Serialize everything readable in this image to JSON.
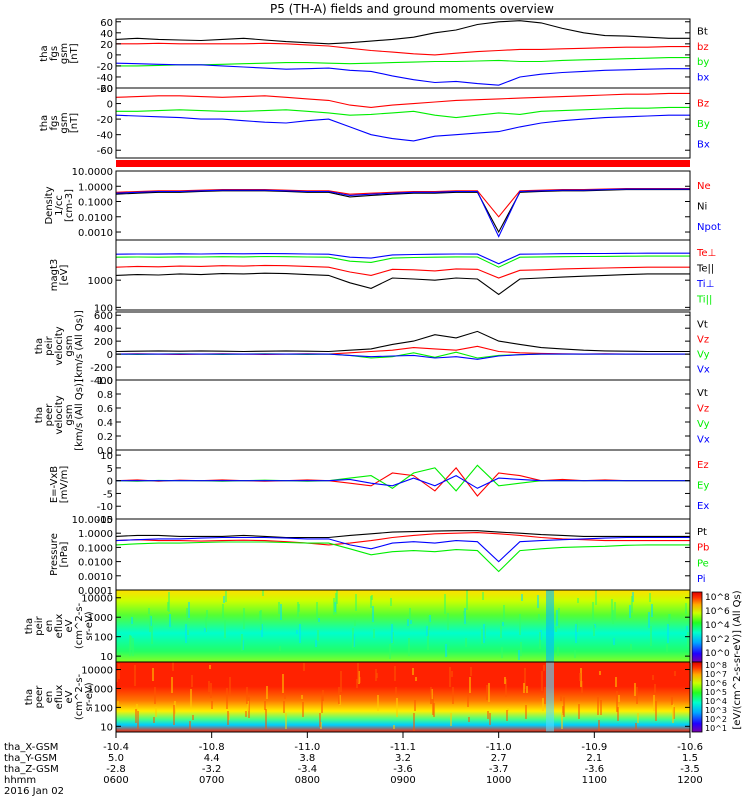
{
  "title": "P5 (TH-A) fields and ground moments overview",
  "chart_data": [
    {
      "type": "line",
      "panel": "fgs",
      "ylabel": "tha fgs gsm [nT]",
      "yticks": [
        60,
        40,
        20,
        0,
        -20,
        -40,
        -60
      ],
      "ylim": [
        -60,
        65
      ],
      "series": [
        {
          "name": "Bt",
          "color": "#000000",
          "values": [
            28,
            30,
            28,
            27,
            26,
            28,
            30,
            27,
            24,
            22,
            20,
            22,
            25,
            28,
            32,
            40,
            45,
            55,
            60,
            62,
            58,
            48,
            40,
            35,
            34,
            32,
            30,
            30
          ]
        },
        {
          "name": "bz",
          "color": "#ff0000",
          "values": [
            20,
            20,
            21,
            20,
            20,
            20,
            20,
            21,
            20,
            18,
            16,
            12,
            8,
            5,
            2,
            0,
            3,
            6,
            8,
            10,
            10,
            11,
            12,
            13,
            14,
            14,
            15,
            15
          ]
        },
        {
          "name": "by",
          "color": "#00ee00",
          "values": [
            -20,
            -20,
            -19,
            -18,
            -18,
            -17,
            -16,
            -15,
            -14,
            -14,
            -15,
            -16,
            -15,
            -14,
            -13,
            -12,
            -12,
            -11,
            -10,
            -12,
            -12,
            -10,
            -9,
            -8,
            -7,
            -6,
            -5,
            -5
          ]
        },
        {
          "name": "bx",
          "color": "#0000ff",
          "values": [
            -15,
            -16,
            -17,
            -18,
            -18,
            -20,
            -22,
            -24,
            -26,
            -25,
            -24,
            -28,
            -30,
            -38,
            -45,
            -50,
            -48,
            -52,
            -55,
            -40,
            -35,
            -32,
            -30,
            -28,
            -27,
            -26,
            -25,
            -25
          ]
        }
      ]
    },
    {
      "type": "line",
      "panel": "fgs-caps",
      "ylabel": "tha fgs gsm [nT]",
      "yticks": [
        20,
        0,
        -20,
        -40,
        -60
      ],
      "ylim": [
        -70,
        20
      ],
      "series": [
        {
          "name": "Bz",
          "color": "#ff0000",
          "values": [
            8,
            9,
            10,
            10,
            9,
            8,
            9,
            10,
            8,
            6,
            4,
            -2,
            -5,
            -2,
            0,
            2,
            4,
            5,
            6,
            7,
            8,
            9,
            10,
            11,
            12,
            12,
            13,
            13
          ]
        },
        {
          "name": "By",
          "color": "#00ee00",
          "values": [
            -10,
            -10,
            -9,
            -8,
            -9,
            -10,
            -10,
            -9,
            -8,
            -10,
            -12,
            -15,
            -14,
            -12,
            -10,
            -15,
            -18,
            -15,
            -12,
            -14,
            -10,
            -9,
            -8,
            -7,
            -6,
            -6,
            -5,
            -5
          ]
        },
        {
          "name": "Bx",
          "color": "#0000ff",
          "values": [
            -15,
            -16,
            -17,
            -18,
            -20,
            -20,
            -22,
            -24,
            -25,
            -22,
            -20,
            -30,
            -40,
            -45,
            -48,
            -42,
            -40,
            -38,
            -36,
            -30,
            -25,
            -22,
            -20,
            -18,
            -17,
            -16,
            -15,
            -15
          ]
        }
      ]
    },
    {
      "type": "line",
      "panel": "density",
      "ylabel": "Density 1/cc [cm-3]",
      "scale": "log",
      "yticks": [
        "10.0000",
        "1.0000",
        "0.1000",
        "0.0100",
        "0.0010"
      ],
      "ylim": [
        0.0003,
        10
      ],
      "series": [
        {
          "name": "Ne",
          "color": "#ff0000",
          "values": [
            0.4,
            0.45,
            0.5,
            0.5,
            0.55,
            0.6,
            0.6,
            0.6,
            0.55,
            0.5,
            0.5,
            0.3,
            0.35,
            0.4,
            0.45,
            0.45,
            0.5,
            0.5,
            0.01,
            0.5,
            0.55,
            0.6,
            0.6,
            0.65,
            0.7,
            0.7,
            0.7,
            0.7
          ]
        },
        {
          "name": "Ni",
          "color": "#000000",
          "values": [
            0.3,
            0.35,
            0.4,
            0.4,
            0.45,
            0.5,
            0.5,
            0.5,
            0.45,
            0.4,
            0.4,
            0.2,
            0.25,
            0.3,
            0.35,
            0.35,
            0.4,
            0.4,
            0.001,
            0.4,
            0.45,
            0.5,
            0.5,
            0.55,
            0.6,
            0.6,
            0.6,
            0.6
          ]
        },
        {
          "name": "Npot",
          "color": "#0000ff",
          "values": [
            0.35,
            0.4,
            0.45,
            0.45,
            0.5,
            0.55,
            0.55,
            0.55,
            0.5,
            0.45,
            0.45,
            0.25,
            0.3,
            0.35,
            0.4,
            0.4,
            0.45,
            0.45,
            0.0005,
            0.45,
            0.5,
            0.55,
            0.55,
            0.6,
            0.65,
            0.65,
            0.65,
            0.65
          ]
        }
      ]
    },
    {
      "type": "line",
      "panel": "temperature",
      "ylabel": "magt3 [eV]",
      "scale": "log",
      "yticks": [
        "1000",
        "100"
      ],
      "ylim": [
        80,
        30000
      ],
      "series": [
        {
          "name": "Te⊥",
          "color": "#ff0000",
          "values": [
            3000,
            3200,
            3100,
            3300,
            3200,
            3400,
            3300,
            3500,
            3400,
            3200,
            3000,
            2000,
            1500,
            2500,
            2400,
            2200,
            2600,
            2500,
            1200,
            2300,
            2400,
            2600,
            2700,
            2800,
            2900,
            3000,
            3000,
            3000
          ]
        },
        {
          "name": "Te||",
          "color": "#000000",
          "values": [
            1500,
            1600,
            1550,
            1700,
            1600,
            1750,
            1700,
            1800,
            1750,
            1600,
            1500,
            800,
            500,
            1200,
            1100,
            1000,
            1200,
            1100,
            300,
            1100,
            1200,
            1300,
            1400,
            1500,
            1600,
            1700,
            1700,
            1700
          ]
        },
        {
          "name": "Ti⊥",
          "color": "#0000ff",
          "values": [
            9000,
            9200,
            9100,
            9300,
            9200,
            9400,
            9300,
            9500,
            9400,
            9200,
            9000,
            7000,
            6500,
            8500,
            8800,
            9000,
            9200,
            9100,
            4000,
            9000,
            9200,
            9400,
            9500,
            9600,
            9700,
            9800,
            9800,
            9800
          ]
        },
        {
          "name": "Ti||",
          "color": "#00ee00",
          "values": [
            7000,
            7100,
            7000,
            7200,
            7100,
            7300,
            7200,
            7400,
            7300,
            7100,
            7000,
            5000,
            4500,
            6500,
            6800,
            7000,
            7200,
            7100,
            3000,
            7000,
            7200,
            7300,
            7400,
            7500,
            7600,
            7700,
            7700,
            7700
          ]
        }
      ]
    },
    {
      "type": "line",
      "panel": "peir-velocity",
      "ylabel": "tha peir velocity gsm [km/s (All Qs)]",
      "yticks": [
        600,
        400,
        200,
        0,
        -200,
        -400
      ],
      "ylim": [
        -400,
        650
      ],
      "series": [
        {
          "name": "Vt",
          "color": "#000000",
          "values": [
            40,
            45,
            50,
            45,
            50,
            45,
            40,
            45,
            50,
            45,
            40,
            60,
            80,
            150,
            200,
            300,
            250,
            350,
            200,
            150,
            100,
            80,
            60,
            50,
            45,
            40,
            40,
            40
          ]
        },
        {
          "name": "Vz",
          "color": "#ff0000",
          "values": [
            0,
            5,
            0,
            -5,
            0,
            5,
            0,
            -5,
            0,
            5,
            0,
            20,
            40,
            60,
            100,
            80,
            60,
            120,
            40,
            20,
            10,
            5,
            0,
            5,
            0,
            0,
            0,
            0
          ]
        },
        {
          "name": "Vy",
          "color": "#00ee00",
          "values": [
            0,
            -5,
            0,
            5,
            0,
            -5,
            0,
            5,
            0,
            -5,
            0,
            -20,
            -60,
            -40,
            20,
            -50,
            30,
            -60,
            -20,
            -10,
            0,
            0,
            0,
            0,
            0,
            0,
            0,
            0
          ]
        },
        {
          "name": "Vx",
          "color": "#0000ff",
          "values": [
            0,
            0,
            0,
            0,
            0,
            0,
            0,
            0,
            0,
            0,
            0,
            -20,
            -40,
            -30,
            -20,
            -60,
            -40,
            -80,
            -30,
            -10,
            0,
            0,
            0,
            0,
            0,
            0,
            0,
            0
          ]
        }
      ]
    },
    {
      "type": "line",
      "panel": "peer-velocity",
      "ylabel": "tha peer velocity gsm [km/s (All Qs)]",
      "yticks": [
        "1.0",
        "0.8",
        "0.6",
        "0.4",
        "0.2",
        "0.0"
      ],
      "ylim": [
        0,
        1
      ],
      "series": [
        {
          "name": "Vt",
          "color": "#000000",
          "values": []
        },
        {
          "name": "Vz",
          "color": "#ff0000",
          "values": []
        },
        {
          "name": "Vy",
          "color": "#00ee00",
          "values": []
        },
        {
          "name": "Vx",
          "color": "#0000ff",
          "values": []
        }
      ]
    },
    {
      "type": "line",
      "panel": "efield",
      "ylabel": "E=-VxB [mV/m]",
      "yticks": [
        10,
        5,
        0,
        -5,
        -10,
        -15
      ],
      "ylim": [
        -15,
        12
      ],
      "series": [
        {
          "name": "Ez",
          "color": "#ff0000",
          "values": [
            0,
            0.3,
            -0.2,
            0.2,
            0,
            0.3,
            0,
            -0.2,
            0,
            0.3,
            0,
            -1,
            -2,
            3,
            2,
            -4,
            5,
            -6,
            3,
            2,
            0,
            0.5,
            0,
            0.3,
            0,
            0,
            0,
            0
          ]
        },
        {
          "name": "Ey",
          "color": "#00ee00",
          "values": [
            0,
            -0.2,
            0.1,
            0,
            0,
            -0.2,
            0,
            0.2,
            0,
            -0.2,
            0,
            1,
            2,
            -3,
            3,
            5,
            -4,
            6,
            -2,
            -1,
            0,
            0,
            0,
            0,
            0,
            0,
            0,
            0
          ]
        },
        {
          "name": "Ex",
          "color": "#0000ff",
          "values": [
            0,
            0,
            0,
            0,
            0,
            0,
            0,
            0,
            0,
            0,
            0,
            0.5,
            -1,
            -2,
            1,
            -2,
            2,
            -3,
            1,
            0.5,
            0,
            0,
            0,
            0,
            0,
            0,
            0,
            0
          ]
        }
      ]
    },
    {
      "type": "line",
      "panel": "pressure",
      "ylabel": "Pressure [nPa]",
      "scale": "log",
      "yticks": [
        "10.0000",
        "1.0000",
        "0.1000",
        "0.0100",
        "0.0010",
        "0.0001"
      ],
      "ylim": [
        0.0001,
        10
      ],
      "series": [
        {
          "name": "Pt",
          "color": "#000000",
          "values": [
            0.6,
            0.7,
            0.7,
            0.6,
            0.6,
            0.6,
            0.7,
            0.6,
            0.5,
            0.5,
            0.5,
            0.7,
            0.9,
            1.2,
            1.3,
            1.4,
            1.5,
            1.5,
            1.2,
            1.0,
            0.8,
            0.7,
            0.6,
            0.6,
            0.6,
            0.6,
            0.6,
            0.6
          ]
        },
        {
          "name": "Pb",
          "color": "#ff0000",
          "values": [
            0.3,
            0.35,
            0.3,
            0.3,
            0.28,
            0.3,
            0.32,
            0.3,
            0.25,
            0.2,
            0.15,
            0.2,
            0.3,
            0.5,
            0.7,
            0.9,
            1.0,
            1.1,
            0.9,
            0.7,
            0.5,
            0.4,
            0.35,
            0.3,
            0.3,
            0.3,
            0.3,
            0.3
          ]
        },
        {
          "name": "Pe",
          "color": "#00ee00",
          "values": [
            0.15,
            0.18,
            0.2,
            0.2,
            0.22,
            0.24,
            0.24,
            0.24,
            0.22,
            0.2,
            0.2,
            0.08,
            0.03,
            0.05,
            0.06,
            0.05,
            0.07,
            0.06,
            0.002,
            0.06,
            0.08,
            0.1,
            0.11,
            0.12,
            0.14,
            0.15,
            0.15,
            0.15
          ]
        },
        {
          "name": "Pi",
          "color": "#0000ff",
          "values": [
            0.3,
            0.35,
            0.4,
            0.4,
            0.45,
            0.5,
            0.5,
            0.5,
            0.45,
            0.4,
            0.4,
            0.15,
            0.08,
            0.2,
            0.25,
            0.2,
            0.3,
            0.25,
            0.01,
            0.25,
            0.3,
            0.35,
            0.4,
            0.45,
            0.5,
            0.5,
            0.5,
            0.5
          ]
        }
      ]
    },
    {
      "type": "heatmap",
      "panel": "peir-spectrogram",
      "ylabel": "tha peir en eflux eV (cm^2-s-sr-eV)",
      "scale": "log",
      "yticks": [
        "10000",
        "1000",
        "100",
        "10"
      ],
      "ylim": [
        5,
        25000
      ]
    },
    {
      "type": "heatmap",
      "panel": "peer-spectrogram",
      "ylabel": "tha peer en eflux eV (cm^2-s-sr-eV)",
      "scale": "log",
      "yticks": [
        "10000",
        "1000",
        "100",
        "10"
      ],
      "ylim": [
        5,
        25000
      ]
    }
  ],
  "colorbar": {
    "label": "[eV/(cm^2-s-sr-eV)] (All Qs)",
    "ticks_top": [
      "10^8",
      "10^6",
      "10^4",
      "10^2",
      "10^0"
    ],
    "ticks_bottom": [
      "10^8",
      "10^7",
      "10^6",
      "10^5",
      "10^4",
      "10^3",
      "10^2",
      "10^1"
    ]
  },
  "x_axis": {
    "rows": [
      {
        "label": "tha_X-GSM",
        "values": [
          "-10.4",
          "-10.8",
          "-11.0",
          "-11.1",
          "-11.0",
          "-10.9",
          "-10.6"
        ]
      },
      {
        "label": "tha_Y-GSM",
        "values": [
          "5.0",
          "4.4",
          "3.8",
          "3.2",
          "2.7",
          "2.1",
          "1.5"
        ]
      },
      {
        "label": "tha_Z-GSM",
        "values": [
          "-2.8",
          "-3.2",
          "-3.4",
          "-3.6",
          "-3.7",
          "-3.6",
          "-3.5"
        ]
      },
      {
        "label": "hhmm",
        "values": [
          "0600",
          "0700",
          "0800",
          "0900",
          "1000",
          "1100",
          "1200"
        ]
      }
    ],
    "date": "2016 Jan 02"
  }
}
